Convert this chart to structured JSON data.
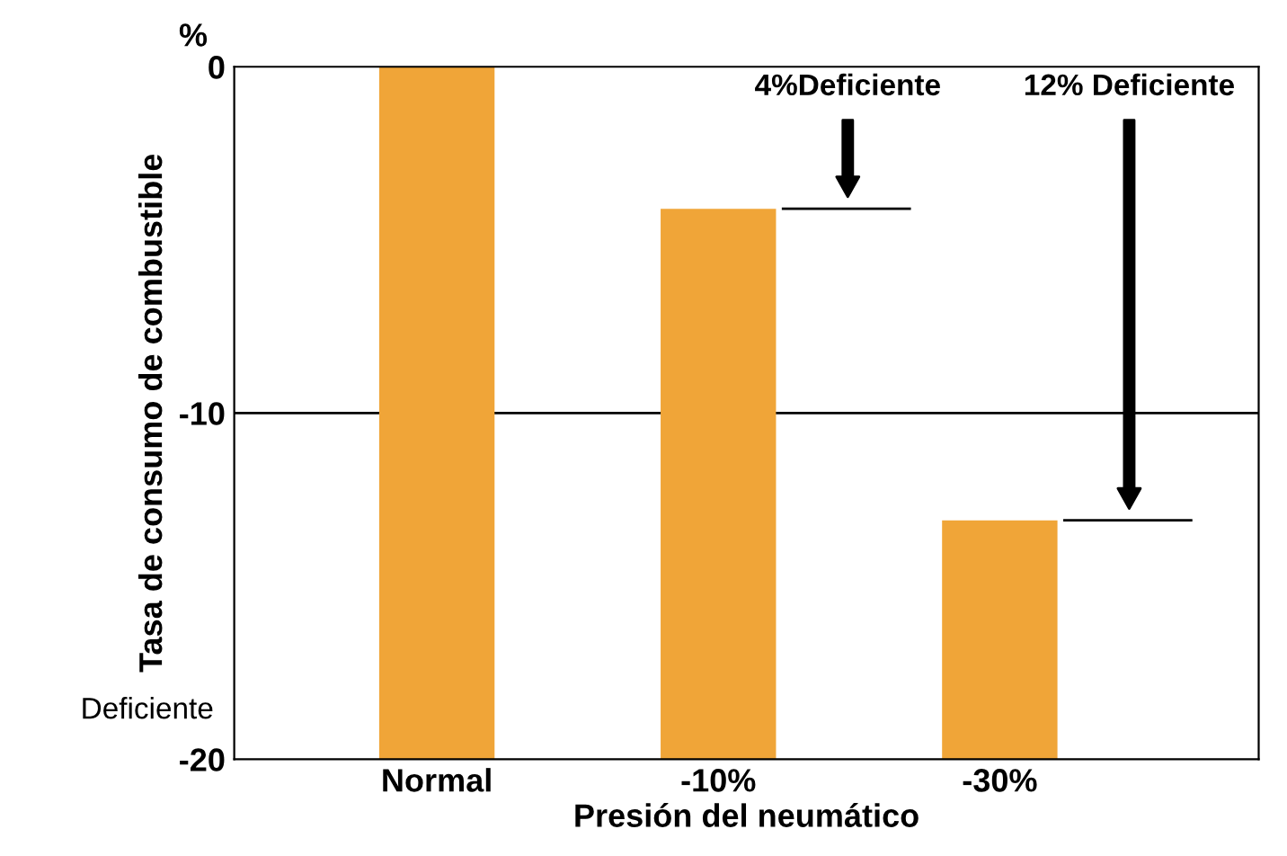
{
  "chart_data": {
    "type": "bar",
    "xlabel": "Presión del neumático",
    "ylabel": "Tasa de consumo de combustible",
    "categories": [
      "Normal",
      "-10%",
      "-30%"
    ],
    "base": [
      -20,
      -20,
      -20
    ],
    "values": [
      20,
      15.9,
      6.9
    ],
    "color": "#f0a538",
    "ylim": [
      -20,
      0
    ],
    "yticks": [
      0,
      -10,
      -20
    ],
    "ref_lines": [
      {
        "axis": "y",
        "value": -10,
        "color": "#000000"
      }
    ],
    "annotations": [
      "4%Deficiente",
      "12% Deficiente",
      "Deficiente",
      "%"
    ],
    "grid": false,
    "legend": false
  }
}
